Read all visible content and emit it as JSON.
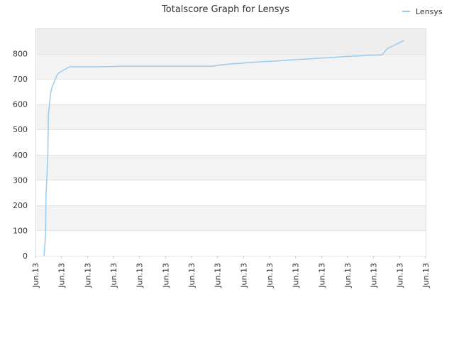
{
  "chart_data": {
    "type": "line",
    "title": "Totalscore Graph for Lensys",
    "xlabel": "",
    "ylabel": "",
    "ylim": [
      0,
      900
    ],
    "y_ticks": [
      0,
      100,
      200,
      300,
      400,
      500,
      600,
      700,
      800
    ],
    "x_tick_labels": [
      "Jun.13",
      "Jun.13",
      "Jun.13",
      "Jun.13",
      "Jun.13",
      "Jun.13",
      "Jun.13",
      "Jun.13",
      "Jun.13",
      "Jun.13",
      "Jun.13",
      "Jun.13",
      "Jun.13",
      "Jun.13",
      "Jun.13",
      "Jun.13"
    ],
    "grid": "horizontal bands",
    "legend": {
      "placement": "top-right",
      "entries": [
        "Lensys"
      ]
    },
    "series": [
      {
        "name": "Lensys",
        "color": "#99ccee",
        "x": [
          0.0,
          0.6,
          0.8,
          1.5,
          1.7,
          2.6,
          2.9,
          3.3,
          4.0,
          5.0,
          6.0,
          7.5,
          10.0,
          15.0,
          20.0,
          25.0,
          30.0,
          37.0,
          45.0,
          65.0,
          68.0,
          71.0,
          73.0,
          76.0,
          78.0,
          81.0,
          84.0,
          88.0,
          91.0,
          94.0,
          97.0,
          100.0,
          103.0,
          106.0,
          110.0,
          113.0,
          116.0,
          119.0,
          122.0,
          125.0,
          131.0,
          133.0,
          137.0,
          139.6
        ],
        "y": [
          0,
          80,
          240,
          400,
          560,
          645,
          660,
          670,
          690,
          715,
          725,
          735,
          748,
          748,
          748,
          749,
          750,
          750,
          750,
          750,
          755,
          758,
          760,
          762,
          764,
          766,
          768,
          770,
          772,
          774,
          776,
          778,
          780,
          782,
          784,
          786,
          788,
          790,
          791,
          793,
          795,
          820,
          840,
          853
        ]
      }
    ]
  }
}
